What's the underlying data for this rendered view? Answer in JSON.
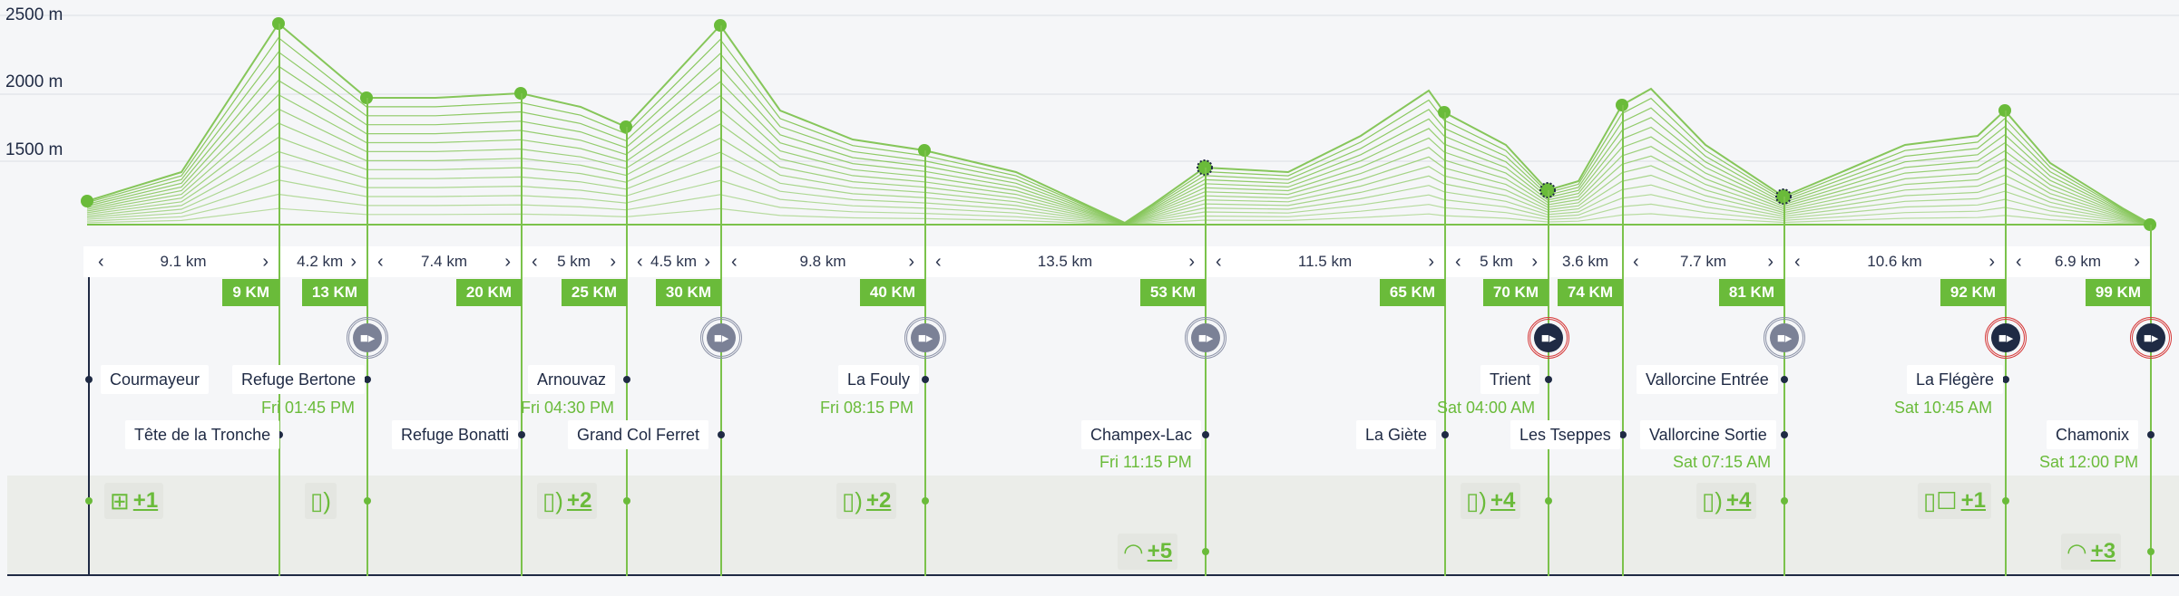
{
  "y_axis": {
    "labels": [
      "2500 m",
      "2000 m",
      "1500 m"
    ]
  },
  "distances": [
    {
      "label": "9.1 km"
    },
    {
      "label": "4.2 km"
    },
    {
      "label": "7.4 km"
    },
    {
      "label": "5 km"
    },
    {
      "label": "4.5 km"
    },
    {
      "label": "9.8 km"
    },
    {
      "label": "13.5 km"
    },
    {
      "label": "11.5 km"
    },
    {
      "label": "5 km"
    },
    {
      "label": "3.6 km"
    },
    {
      "label": "7.7 km"
    },
    {
      "label": "10.6 km"
    },
    {
      "label": "6.9 km"
    }
  ],
  "km_markers": [
    {
      "label": "9 KM"
    },
    {
      "label": "13 KM"
    },
    {
      "label": "20 KM"
    },
    {
      "label": "25 KM"
    },
    {
      "label": "30 KM"
    },
    {
      "label": "40 KM"
    },
    {
      "label": "53 KM"
    },
    {
      "label": "65 KM"
    },
    {
      "label": "70 KM"
    },
    {
      "label": "74 KM"
    },
    {
      "label": "81 KM"
    },
    {
      "label": "92 KM"
    },
    {
      "label": "99 KM"
    }
  ],
  "checkpoints": [
    {
      "name": "Courmayeur",
      "time": ""
    },
    {
      "name": "Refuge Bertone",
      "time": "Fri 01:45 PM"
    },
    {
      "name": "Tête de la Tronche",
      "time": ""
    },
    {
      "name": "Refuge Bonatti",
      "time": ""
    },
    {
      "name": "Arnouvaz",
      "time": "Fri 04:30 PM"
    },
    {
      "name": "Grand Col Ferret",
      "time": ""
    },
    {
      "name": "La Fouly",
      "time": "Fri 08:15 PM"
    },
    {
      "name": "Champex-Lac",
      "time": "Fri 11:15 PM"
    },
    {
      "name": "La Giète",
      "time": ""
    },
    {
      "name": "Trient",
      "time": "Sat 04:00 AM"
    },
    {
      "name": "Les Tseppes",
      "time": ""
    },
    {
      "name": "Vallorcine Entrée",
      "time": ""
    },
    {
      "name": "Vallorcine Sortie",
      "time": "Sat 07:15 AM"
    },
    {
      "name": "La Flégère",
      "time": "Sat 10:45 AM"
    },
    {
      "name": "Chamonix",
      "time": "Sat 12:00 PM"
    }
  ],
  "cameras": [
    {
      "status": "gray",
      "icon": "video-camera-icon"
    },
    {
      "status": "gray",
      "icon": "video-camera-icon"
    },
    {
      "status": "gray",
      "icon": "video-camera-icon"
    },
    {
      "status": "gray",
      "icon": "video-camera-icon"
    },
    {
      "status": "red",
      "icon": "video-camera-icon"
    },
    {
      "status": "gray",
      "icon": "video-camera-icon"
    },
    {
      "status": "red",
      "icon": "video-camera-icon"
    },
    {
      "status": "red",
      "icon": "video-camera-icon"
    }
  ],
  "services": [
    {
      "icon": "first-aid-icon",
      "count": "+1"
    },
    {
      "icon": "drink-icon",
      "count": ""
    },
    {
      "icon": "drink-icon",
      "count": "+2"
    },
    {
      "icon": "drink-icon",
      "count": "+2"
    },
    {
      "icon": "meal-icon",
      "count": "+5"
    },
    {
      "icon": "drink-icon",
      "count": "+4"
    },
    {
      "icon": "drink-icon",
      "count": "+4"
    },
    {
      "icon": "drink-bottle-icon",
      "count": "+1"
    },
    {
      "icon": "meal-icon",
      "count": "+3"
    }
  ],
  "colors": {
    "accent": "#6abb3a",
    "dark": "#1f2a44",
    "alert": "#d63b3b",
    "muted": "#7b8196"
  }
}
